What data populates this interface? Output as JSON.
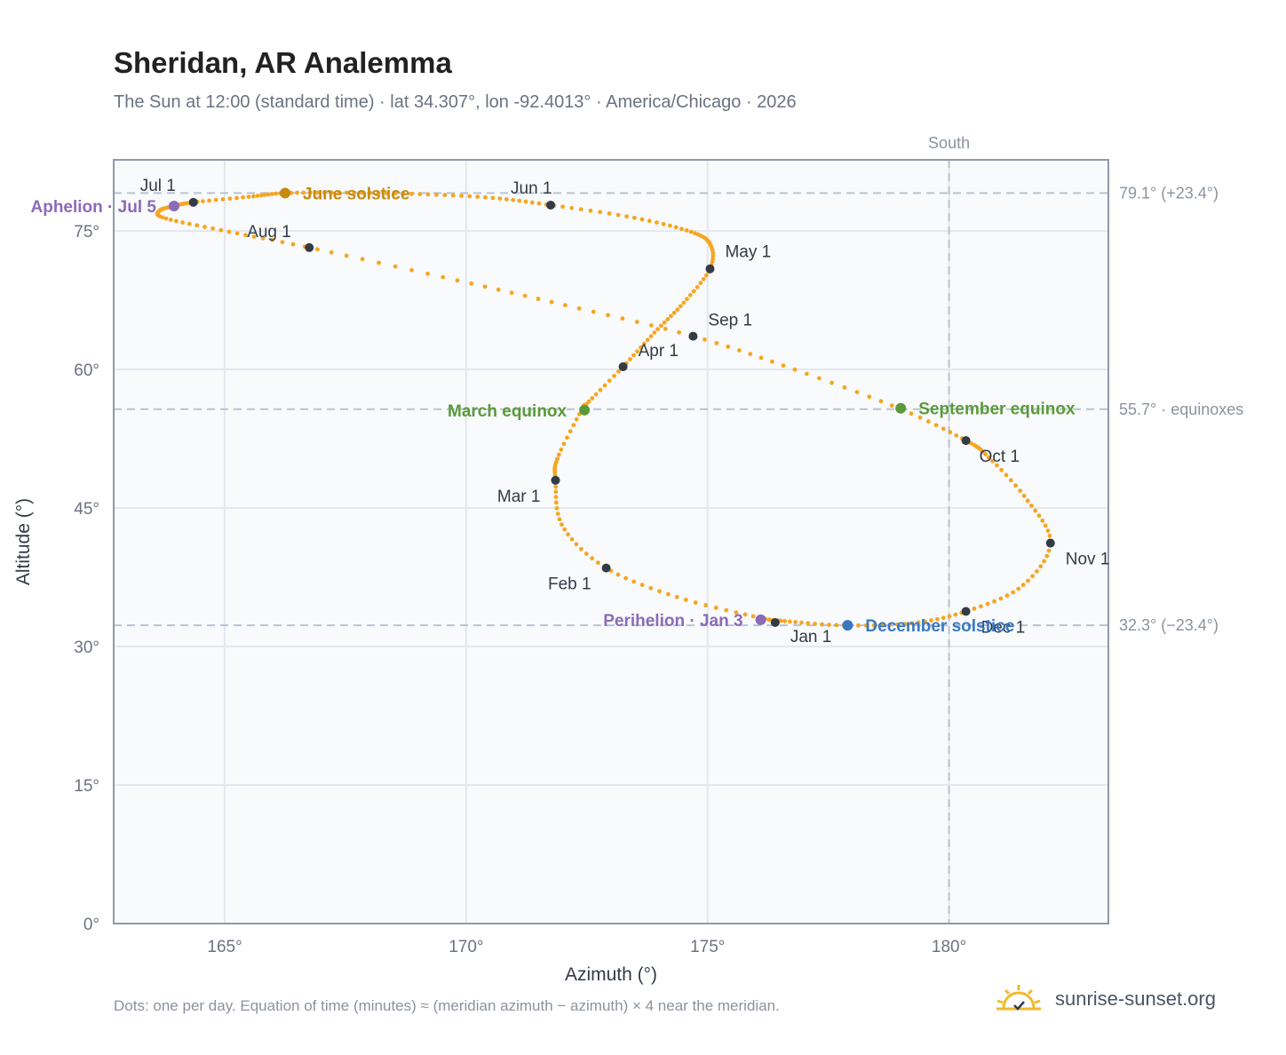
{
  "title": "Sheridan, AR Analemma",
  "subtitle": "The Sun at 12:00 (standard time) · lat 34.307°, lon -92.4013° · America/Chicago · 2026",
  "footer_note": "Dots: one per day. Equation of time (minutes) ≈ (meridian azimuth − azimuth) × 4 near the meridian.",
  "brand": {
    "text": "sunrise-sunset.org",
    "icon": "sun-logo-icon"
  },
  "colors": {
    "curve": "#f5a623",
    "month_marker": "#333b45",
    "june_solstice": "#c8890e",
    "december_solstice": "#3a78c2",
    "equinox": "#5a9a3a",
    "apsis": "#8b6bb8",
    "grid": "#e3e8ee",
    "reference": "#b7c4d0",
    "plot_bg": "#f8fafc",
    "frame": "#8e9aa8"
  },
  "chart_data": {
    "type": "scatter",
    "title": "Sheridan, AR Analemma",
    "xlabel": "Azimuth (°)",
    "ylabel": "Altitude (°)",
    "xlim": [
      162.7,
      183.3
    ],
    "ylim": [
      0,
      82.7
    ],
    "x_ticks": [
      165,
      170,
      175,
      180
    ],
    "x_tick_labels": [
      "165°",
      "170°",
      "175°",
      "180°"
    ],
    "y_ticks": [
      0,
      15,
      30,
      45,
      60,
      75
    ],
    "y_tick_labels": [
      "0°",
      "15°",
      "30°",
      "45°",
      "60°",
      "75°"
    ],
    "grid": true,
    "meridian": {
      "azimuth": 180.0,
      "label": "South"
    },
    "reference_lines": [
      {
        "altitude": 79.1,
        "label": "79.1° (+23.4°)"
      },
      {
        "altitude": 55.7,
        "label": "55.7° · equinoxes"
      },
      {
        "altitude": 32.3,
        "label": "32.3° (−23.4°)"
      }
    ],
    "path": [
      [
        176.6,
        32.75
      ],
      [
        177.8,
        32.3
      ],
      [
        179.2,
        32.5
      ],
      [
        180.35,
        33.8
      ],
      [
        181.5,
        36.5
      ],
      [
        182.1,
        41.2
      ],
      [
        181.6,
        46.0
      ],
      [
        180.8,
        50.6
      ],
      [
        180.35,
        52.3
      ],
      [
        179.0,
        55.7
      ],
      [
        176.8,
        60.0
      ],
      [
        174.7,
        63.6
      ],
      [
        172.1,
        66.9
      ],
      [
        169.6,
        69.9
      ],
      [
        166.75,
        73.2
      ],
      [
        165.0,
        75.0
      ],
      [
        163.75,
        76.4
      ],
      [
        163.65,
        77.2
      ],
      [
        163.95,
        77.7
      ],
      [
        164.35,
        78.1
      ],
      [
        165.5,
        78.7
      ],
      [
        166.25,
        79.1
      ],
      [
        167.5,
        79.15
      ],
      [
        169.0,
        79.0
      ],
      [
        170.5,
        78.6
      ],
      [
        171.75,
        77.8
      ],
      [
        173.4,
        76.5
      ],
      [
        174.6,
        75.0
      ],
      [
        175.05,
        73.6
      ],
      [
        175.05,
        70.9
      ],
      [
        174.5,
        67.2
      ],
      [
        173.9,
        64.0
      ],
      [
        173.25,
        60.3
      ],
      [
        172.5,
        56.3
      ],
      [
        172.4,
        55.7
      ],
      [
        171.9,
        50.5
      ],
      [
        171.85,
        48.0
      ],
      [
        172.0,
        43.0
      ],
      [
        172.9,
        38.5
      ],
      [
        174.4,
        35.3
      ],
      [
        176.1,
        33.1
      ],
      [
        176.6,
        32.75
      ]
    ],
    "month_markers": [
      {
        "label": "Jan 1",
        "azimuth": 176.4,
        "altitude": 32.6
      },
      {
        "label": "Feb 1",
        "azimuth": 172.9,
        "altitude": 38.5
      },
      {
        "label": "Mar 1",
        "azimuth": 171.85,
        "altitude": 48.0
      },
      {
        "label": "Apr 1",
        "azimuth": 173.25,
        "altitude": 60.3
      },
      {
        "label": "May 1",
        "azimuth": 175.05,
        "altitude": 70.9
      },
      {
        "label": "Jun 1",
        "azimuth": 171.75,
        "altitude": 77.8
      },
      {
        "label": "Jul 1",
        "azimuth": 164.35,
        "altitude": 78.1
      },
      {
        "label": "Aug 1",
        "azimuth": 166.75,
        "altitude": 73.2
      },
      {
        "label": "Sep 1",
        "azimuth": 174.7,
        "altitude": 63.6
      },
      {
        "label": "Oct 1",
        "azimuth": 180.35,
        "altitude": 52.3
      },
      {
        "label": "Nov 1",
        "azimuth": 182.1,
        "altitude": 41.2
      },
      {
        "label": "Dec 1",
        "azimuth": 180.35,
        "altitude": 33.8
      }
    ],
    "events": [
      {
        "label": "June solstice",
        "azimuth": 166.25,
        "altitude": 79.1,
        "kind": "june_solstice"
      },
      {
        "label": "December solstice",
        "azimuth": 177.9,
        "altitude": 32.3,
        "kind": "december_solstice"
      },
      {
        "label": "March equinox",
        "azimuth": 172.45,
        "altitude": 55.6,
        "kind": "equinox"
      },
      {
        "label": "September equinox",
        "azimuth": 179.0,
        "altitude": 55.8,
        "kind": "equinox"
      },
      {
        "label": "Aphelion · Jul 5",
        "azimuth": 163.95,
        "altitude": 77.7,
        "kind": "apsis"
      },
      {
        "label": "Perihelion · Jan 3",
        "azimuth": 176.1,
        "altitude": 32.9,
        "kind": "apsis"
      }
    ]
  }
}
